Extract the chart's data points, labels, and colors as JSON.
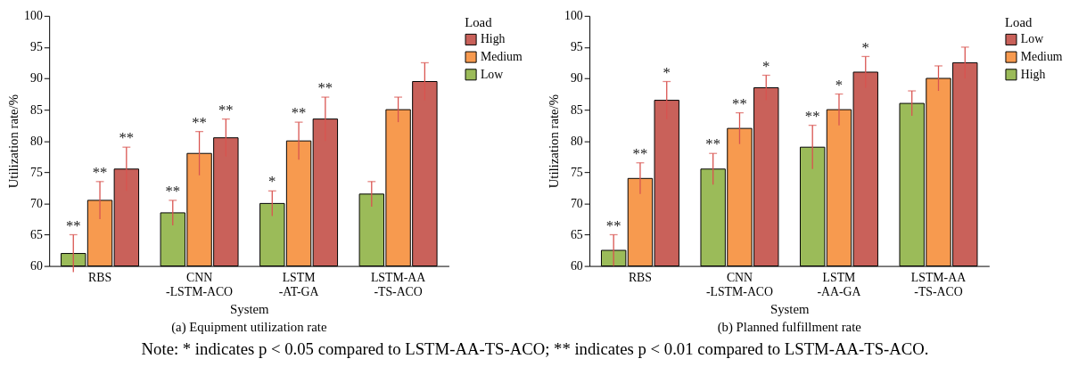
{
  "chart_data": [
    {
      "type": "bar",
      "title": "(a) Equipment utilization rate",
      "xlabel": "System",
      "ylabel": "Utilization rate/%",
      "legend_title": "Load",
      "categories": [
        "RBS",
        "CNN -LSTM-ACO",
        "LSTM -AT-GA",
        "LSTM-AA -TS-ACO"
      ],
      "series": [
        {
          "name": "Low",
          "color": "#9bbb59",
          "values": [
            62,
            68.5,
            70,
            71.5
          ],
          "errors": [
            3,
            2,
            2,
            2
          ],
          "value_labels": [
            "**",
            "**",
            "*",
            null
          ]
        },
        {
          "name": "Medium",
          "color": "#f79a4f",
          "values": [
            70.5,
            78,
            80,
            85
          ],
          "errors": [
            3,
            3.5,
            3,
            2
          ],
          "value_labels": [
            "**",
            "**",
            "**",
            null
          ]
        },
        {
          "name": "High",
          "color": "#c9615a",
          "values": [
            75.5,
            80.5,
            83.5,
            89.5
          ],
          "errors": [
            3.5,
            3,
            3.5,
            3
          ],
          "value_labels": [
            "**",
            "**",
            "**",
            null
          ]
        }
      ],
      "ylim": [
        60,
        100
      ],
      "yticks": [
        60,
        65,
        70,
        75,
        80,
        85,
        90,
        95,
        100
      ],
      "grid": false,
      "legend": "right",
      "annotations": [
        "Note: * indicates p < 0.05 compared to LSTM-AA-TS-ACO; ** indicates p < 0.01 compared to LSTM-AA-TS-ACO."
      ]
    },
    {
      "type": "bar",
      "title": "(b) Planned fulfillment rate",
      "xlabel": "System",
      "ylabel": "Utilization rate/%",
      "legend_title": "Load",
      "categories": [
        "RBS",
        "CNN -LSTM-ACO",
        "LSTM -AA-GA",
        "LSTM-AA -TS-ACO"
      ],
      "series": [
        {
          "name": "High",
          "color": "#9bbb59",
          "values": [
            62.5,
            75.5,
            79,
            86
          ],
          "errors": [
            2.5,
            2.5,
            3.5,
            2
          ],
          "value_labels": [
            "**",
            "**",
            "**",
            null
          ]
        },
        {
          "name": "Medium",
          "color": "#f79a4f",
          "values": [
            74,
            82,
            85,
            90
          ],
          "errors": [
            2.5,
            2.5,
            2.5,
            2
          ],
          "value_labels": [
            "**",
            "**",
            "*",
            null
          ]
        },
        {
          "name": "Low",
          "color": "#c9615a",
          "values": [
            86.5,
            88.5,
            91,
            92.5
          ],
          "errors": [
            3,
            2,
            2.5,
            2.5
          ],
          "value_labels": [
            "*",
            "*",
            "*",
            null
          ]
        }
      ],
      "ylim": [
        60,
        100
      ],
      "yticks": [
        60,
        65,
        70,
        75,
        80,
        85,
        90,
        95,
        100
      ],
      "grid": false,
      "legend": "right"
    }
  ]
}
